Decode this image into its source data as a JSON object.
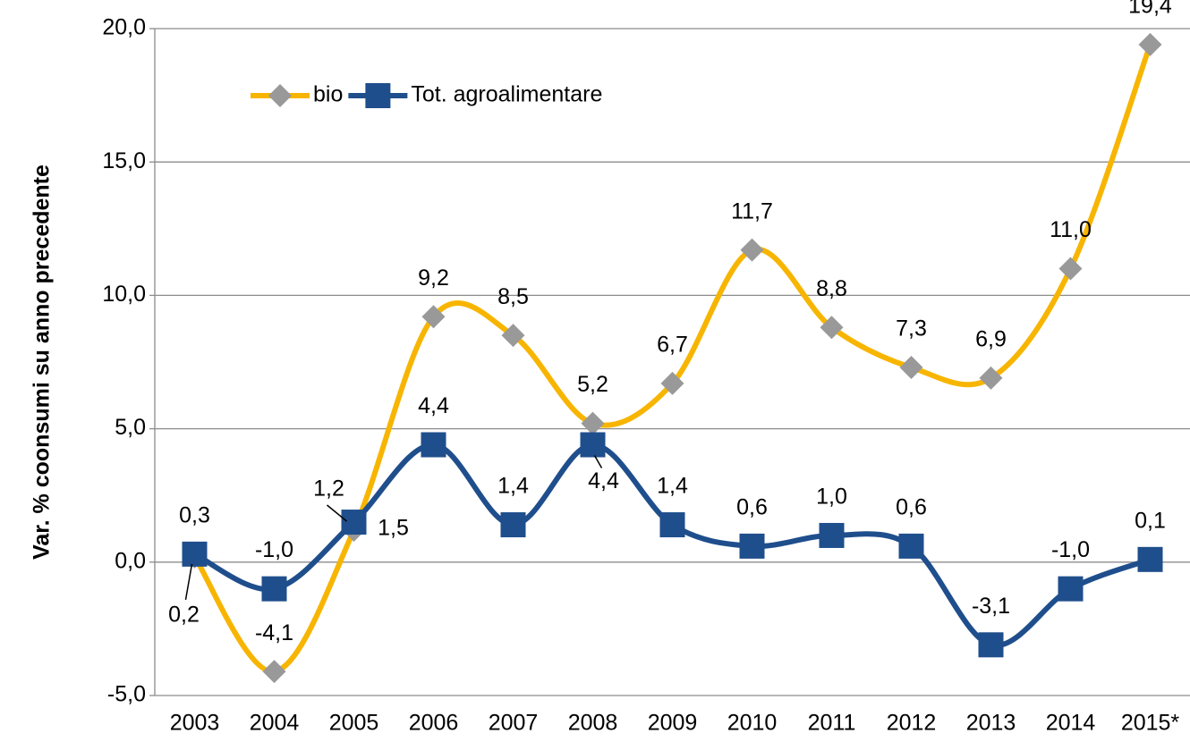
{
  "chart_data": {
    "type": "line",
    "y_label": "Var. % coonsumi su anno precedente",
    "categories": [
      "2003",
      "2004",
      "2005",
      "2006",
      "2007",
      "2008",
      "2009",
      "2010",
      "2011",
      "2012",
      "2013",
      "2014",
      "2015*"
    ],
    "series": [
      {
        "name": "bio",
        "color": "#f7b500",
        "marker_color": "#999999",
        "values": [
          0.2,
          -4.1,
          1.2,
          9.2,
          8.5,
          5.2,
          6.7,
          11.7,
          8.8,
          7.3,
          6.9,
          11.0,
          19.4
        ],
        "value_labels": [
          "0,2",
          "-4,1",
          "1,2",
          "9,2",
          "8,5",
          "5,2",
          "6,7",
          "11,7",
          "8,8",
          "7,3",
          "6,9",
          "11,0",
          "19,4"
        ]
      },
      {
        "name": "Tot. agroalimentare",
        "color": "#1f4e8c",
        "marker_color": "#1f4e8c",
        "values": [
          0.3,
          -1.0,
          1.5,
          4.4,
          1.4,
          4.4,
          1.4,
          0.6,
          1.0,
          0.6,
          -3.1,
          -1.0,
          0.1
        ],
        "value_labels": [
          "0,3",
          "-1,0",
          "1,5",
          "4,4",
          "1,4",
          "4,4",
          "1,4",
          "0,6",
          "1,0",
          "0,6",
          "-3,1",
          "-1,0",
          "0,1"
        ]
      }
    ],
    "ylim": [
      -5,
      20
    ],
    "yticks": [
      {
        "value": -5,
        "label": "-5,0"
      },
      {
        "value": 0,
        "label": "0,0"
      },
      {
        "value": 5,
        "label": "5,0"
      },
      {
        "value": 10,
        "label": "10,0"
      },
      {
        "value": 15,
        "label": "15,0"
      },
      {
        "value": 20,
        "label": "20,0"
      }
    ],
    "grid": true,
    "smooth": true,
    "legend": "top-left"
  }
}
